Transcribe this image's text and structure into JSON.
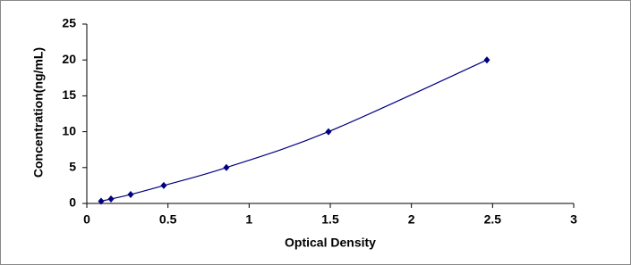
{
  "chart_data": {
    "type": "line",
    "xlabel": "Optical Density",
    "ylabel": "Concentration(ng/mL)",
    "x": [
      0.088,
      0.149,
      0.27,
      0.474,
      0.86,
      1.489,
      2.465
    ],
    "series": [
      {
        "color": "#000080",
        "values": [
          0.31,
          0.625,
          1.25,
          2.5,
          5,
          10,
          20
        ]
      }
    ],
    "xlim": [
      0,
      3
    ],
    "ylim": [
      0,
      25
    ],
    "xticks": [
      0,
      0.5,
      1,
      1.5,
      2,
      2.5,
      3
    ],
    "yticks": [
      0,
      5,
      10,
      15,
      20,
      25
    ],
    "grid": false,
    "markers": true
  }
}
